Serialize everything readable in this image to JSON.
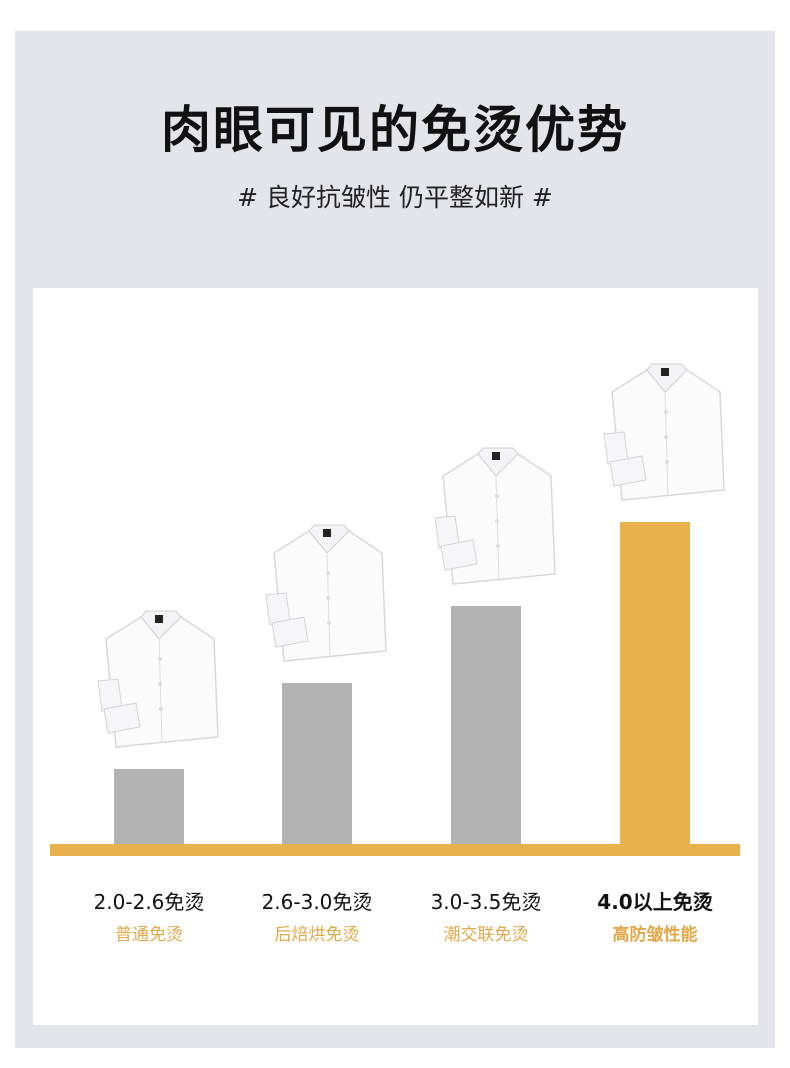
{
  "header": {
    "title": "肉眼可见的免烫优势",
    "subtitle": "# 良好抗皱性 仍平整如新 #"
  },
  "colors": {
    "panel": "#e4e5ea",
    "gray_bar": "#b3b3b3",
    "gold": "#e8b14c",
    "label_gold": "#e3a84a"
  },
  "levels": [
    {
      "grade": "2.0-2.6免烫",
      "type": "普通免烫",
      "highlight": false
    },
    {
      "grade": "2.6-3.0免烫",
      "type": "后焙烘免烫",
      "highlight": false
    },
    {
      "grade": "3.0-3.5免烫",
      "type": "潮交联免烫",
      "highlight": false
    },
    {
      "grade": "4.0以上免烫",
      "type": "高防皱性能",
      "highlight": true
    }
  ],
  "icons": {
    "product": "white-shirt-icon"
  }
}
